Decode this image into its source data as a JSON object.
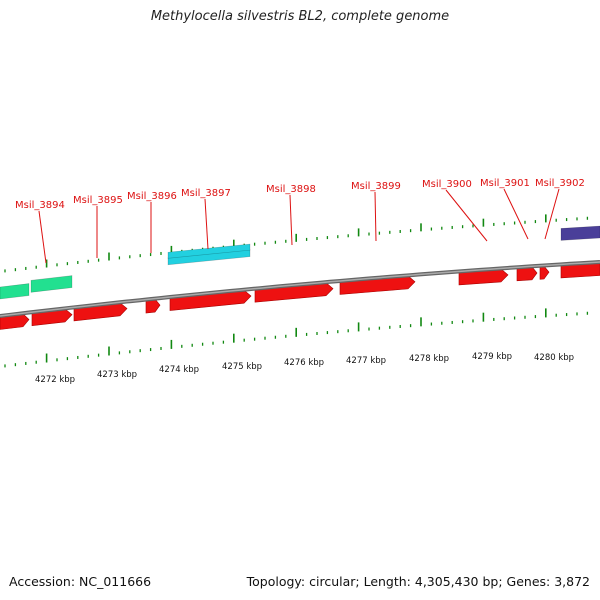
{
  "title": "Methylocella silvestris BL2, complete genome",
  "footer": {
    "accession": "Accession: NC_011666",
    "summary": "Topology: circular; Length: 4,305,430 bp; Genes: 3,872"
  },
  "colors": {
    "gene": "#ee1111",
    "gene_label": "#dd1111",
    "rna_green": "#22e090",
    "rna_cyan": "#22d0e0",
    "purple_feature": "#4a3f99",
    "tick": "#118811",
    "backbone": "#888888"
  },
  "gene_labels": [
    "Msil_3894",
    "Msil_3895",
    "Msil_3896",
    "Msil_3897",
    "Msil_3898",
    "Msil_3899",
    "Msil_3900",
    "Msil_3901",
    "Msil_3902"
  ],
  "scale_labels": [
    "4272 kbp",
    "4273 kbp",
    "4274 kbp",
    "4275 kbp",
    "4276 kbp",
    "4277 kbp",
    "4278 kbp",
    "4279 kbp",
    "4280 kbp"
  ]
}
